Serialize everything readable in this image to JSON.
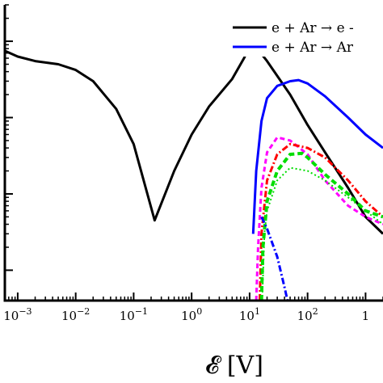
{
  "chart_data": {
    "type": "line",
    "title": "",
    "xlabel": "𝓔 [V]",
    "ylabel": "",
    "x_scale": "log",
    "xlim": [
      0.0006,
      2000
    ],
    "y_scale": "log",
    "ylim": [
      0.004,
      30
    ],
    "grid": false,
    "legend_position": "top-right (partially cut off)",
    "x_ticks": [
      {
        "value": 0.001,
        "base": "10",
        "exp": "−3"
      },
      {
        "value": 0.01,
        "base": "10",
        "exp": "−2"
      },
      {
        "value": 0.1,
        "base": "10",
        "exp": "−1"
      },
      {
        "value": 1,
        "base": "10",
        "exp": "0"
      },
      {
        "value": 10,
        "base": "10",
        "exp": "1"
      },
      {
        "value": 100,
        "base": "10",
        "exp": "2"
      },
      {
        "value": 1000,
        "base": "1",
        "exp": ""
      }
    ],
    "legend": [
      {
        "label": "e + Ar → e -",
        "color": "#000000",
        "dash": "solid"
      },
      {
        "label": "e + Ar → Ar",
        "color": "#0000ff",
        "dash": "solid"
      }
    ],
    "series": [
      {
        "color": "#000000",
        "dash": "solid",
        "width": 3,
        "points": [
          [
            0.0006,
            7.5
          ],
          [
            0.001,
            6.3
          ],
          [
            0.002,
            5.5
          ],
          [
            0.005,
            5.0
          ],
          [
            0.01,
            4.2
          ],
          [
            0.02,
            3.0
          ],
          [
            0.05,
            1.3
          ],
          [
            0.1,
            0.45
          ],
          [
            0.23,
            0.045
          ],
          [
            0.5,
            0.2
          ],
          [
            1,
            0.6
          ],
          [
            2,
            1.4
          ],
          [
            5,
            3.2
          ],
          [
            8,
            6.0
          ],
          [
            11,
            9.8
          ],
          [
            20,
            5.5
          ],
          [
            50,
            2.0
          ],
          [
            100,
            0.8
          ],
          [
            200,
            0.35
          ],
          [
            500,
            0.12
          ],
          [
            1000,
            0.05
          ],
          [
            2000,
            0.03
          ]
        ]
      },
      {
        "color": "#0000ff",
        "dash": "solid",
        "width": 3,
        "points": [
          [
            11.5,
            0.03
          ],
          [
            13,
            0.2
          ],
          [
            16,
            0.9
          ],
          [
            20,
            1.8
          ],
          [
            30,
            2.6
          ],
          [
            50,
            3.0
          ],
          [
            70,
            3.1
          ],
          [
            100,
            2.8
          ],
          [
            200,
            1.9
          ],
          [
            500,
            1.0
          ],
          [
            1000,
            0.6
          ],
          [
            2000,
            0.4
          ]
        ]
      },
      {
        "color": "#ff00ff",
        "dash": "6 4",
        "width": 3,
        "points": [
          [
            13,
            0.004
          ],
          [
            14,
            0.02
          ],
          [
            16,
            0.12
          ],
          [
            20,
            0.35
          ],
          [
            30,
            0.55
          ],
          [
            50,
            0.5
          ],
          [
            100,
            0.33
          ],
          [
            200,
            0.15
          ],
          [
            500,
            0.07
          ],
          [
            1000,
            0.05
          ],
          [
            2000,
            0.04
          ]
        ]
      },
      {
        "color": "#ff0000",
        "dash": "8 3 2 3",
        "width": 3,
        "points": [
          [
            15,
            0.004
          ],
          [
            16,
            0.03
          ],
          [
            20,
            0.15
          ],
          [
            30,
            0.33
          ],
          [
            50,
            0.45
          ],
          [
            100,
            0.4
          ],
          [
            200,
            0.3
          ],
          [
            500,
            0.15
          ],
          [
            1000,
            0.08
          ],
          [
            2000,
            0.05
          ]
        ]
      },
      {
        "color": "#00dd00",
        "dash": "7 4",
        "width": 4,
        "points": [
          [
            16,
            0.004
          ],
          [
            17,
            0.02
          ],
          [
            20,
            0.08
          ],
          [
            30,
            0.2
          ],
          [
            50,
            0.33
          ],
          [
            80,
            0.34
          ],
          [
            100,
            0.3
          ],
          [
            200,
            0.18
          ],
          [
            500,
            0.1
          ],
          [
            1000,
            0.06
          ],
          [
            2000,
            0.05
          ]
        ]
      },
      {
        "color": "#00dd00",
        "dash": "2 3",
        "width": 2,
        "points": [
          [
            16.5,
            0.004
          ],
          [
            18,
            0.03
          ],
          [
            20,
            0.06
          ],
          [
            30,
            0.15
          ],
          [
            50,
            0.22
          ],
          [
            100,
            0.2
          ],
          [
            200,
            0.15
          ],
          [
            500,
            0.09
          ],
          [
            1000,
            0.06
          ],
          [
            2000,
            0.04
          ]
        ]
      },
      {
        "color": "#0000ff",
        "dash": "8 3 2 3",
        "width": 3,
        "points": [
          [
            16,
            0.05
          ],
          [
            20,
            0.035
          ],
          [
            30,
            0.015
          ],
          [
            40,
            0.006
          ],
          [
            45,
            0.004
          ]
        ]
      }
    ]
  }
}
